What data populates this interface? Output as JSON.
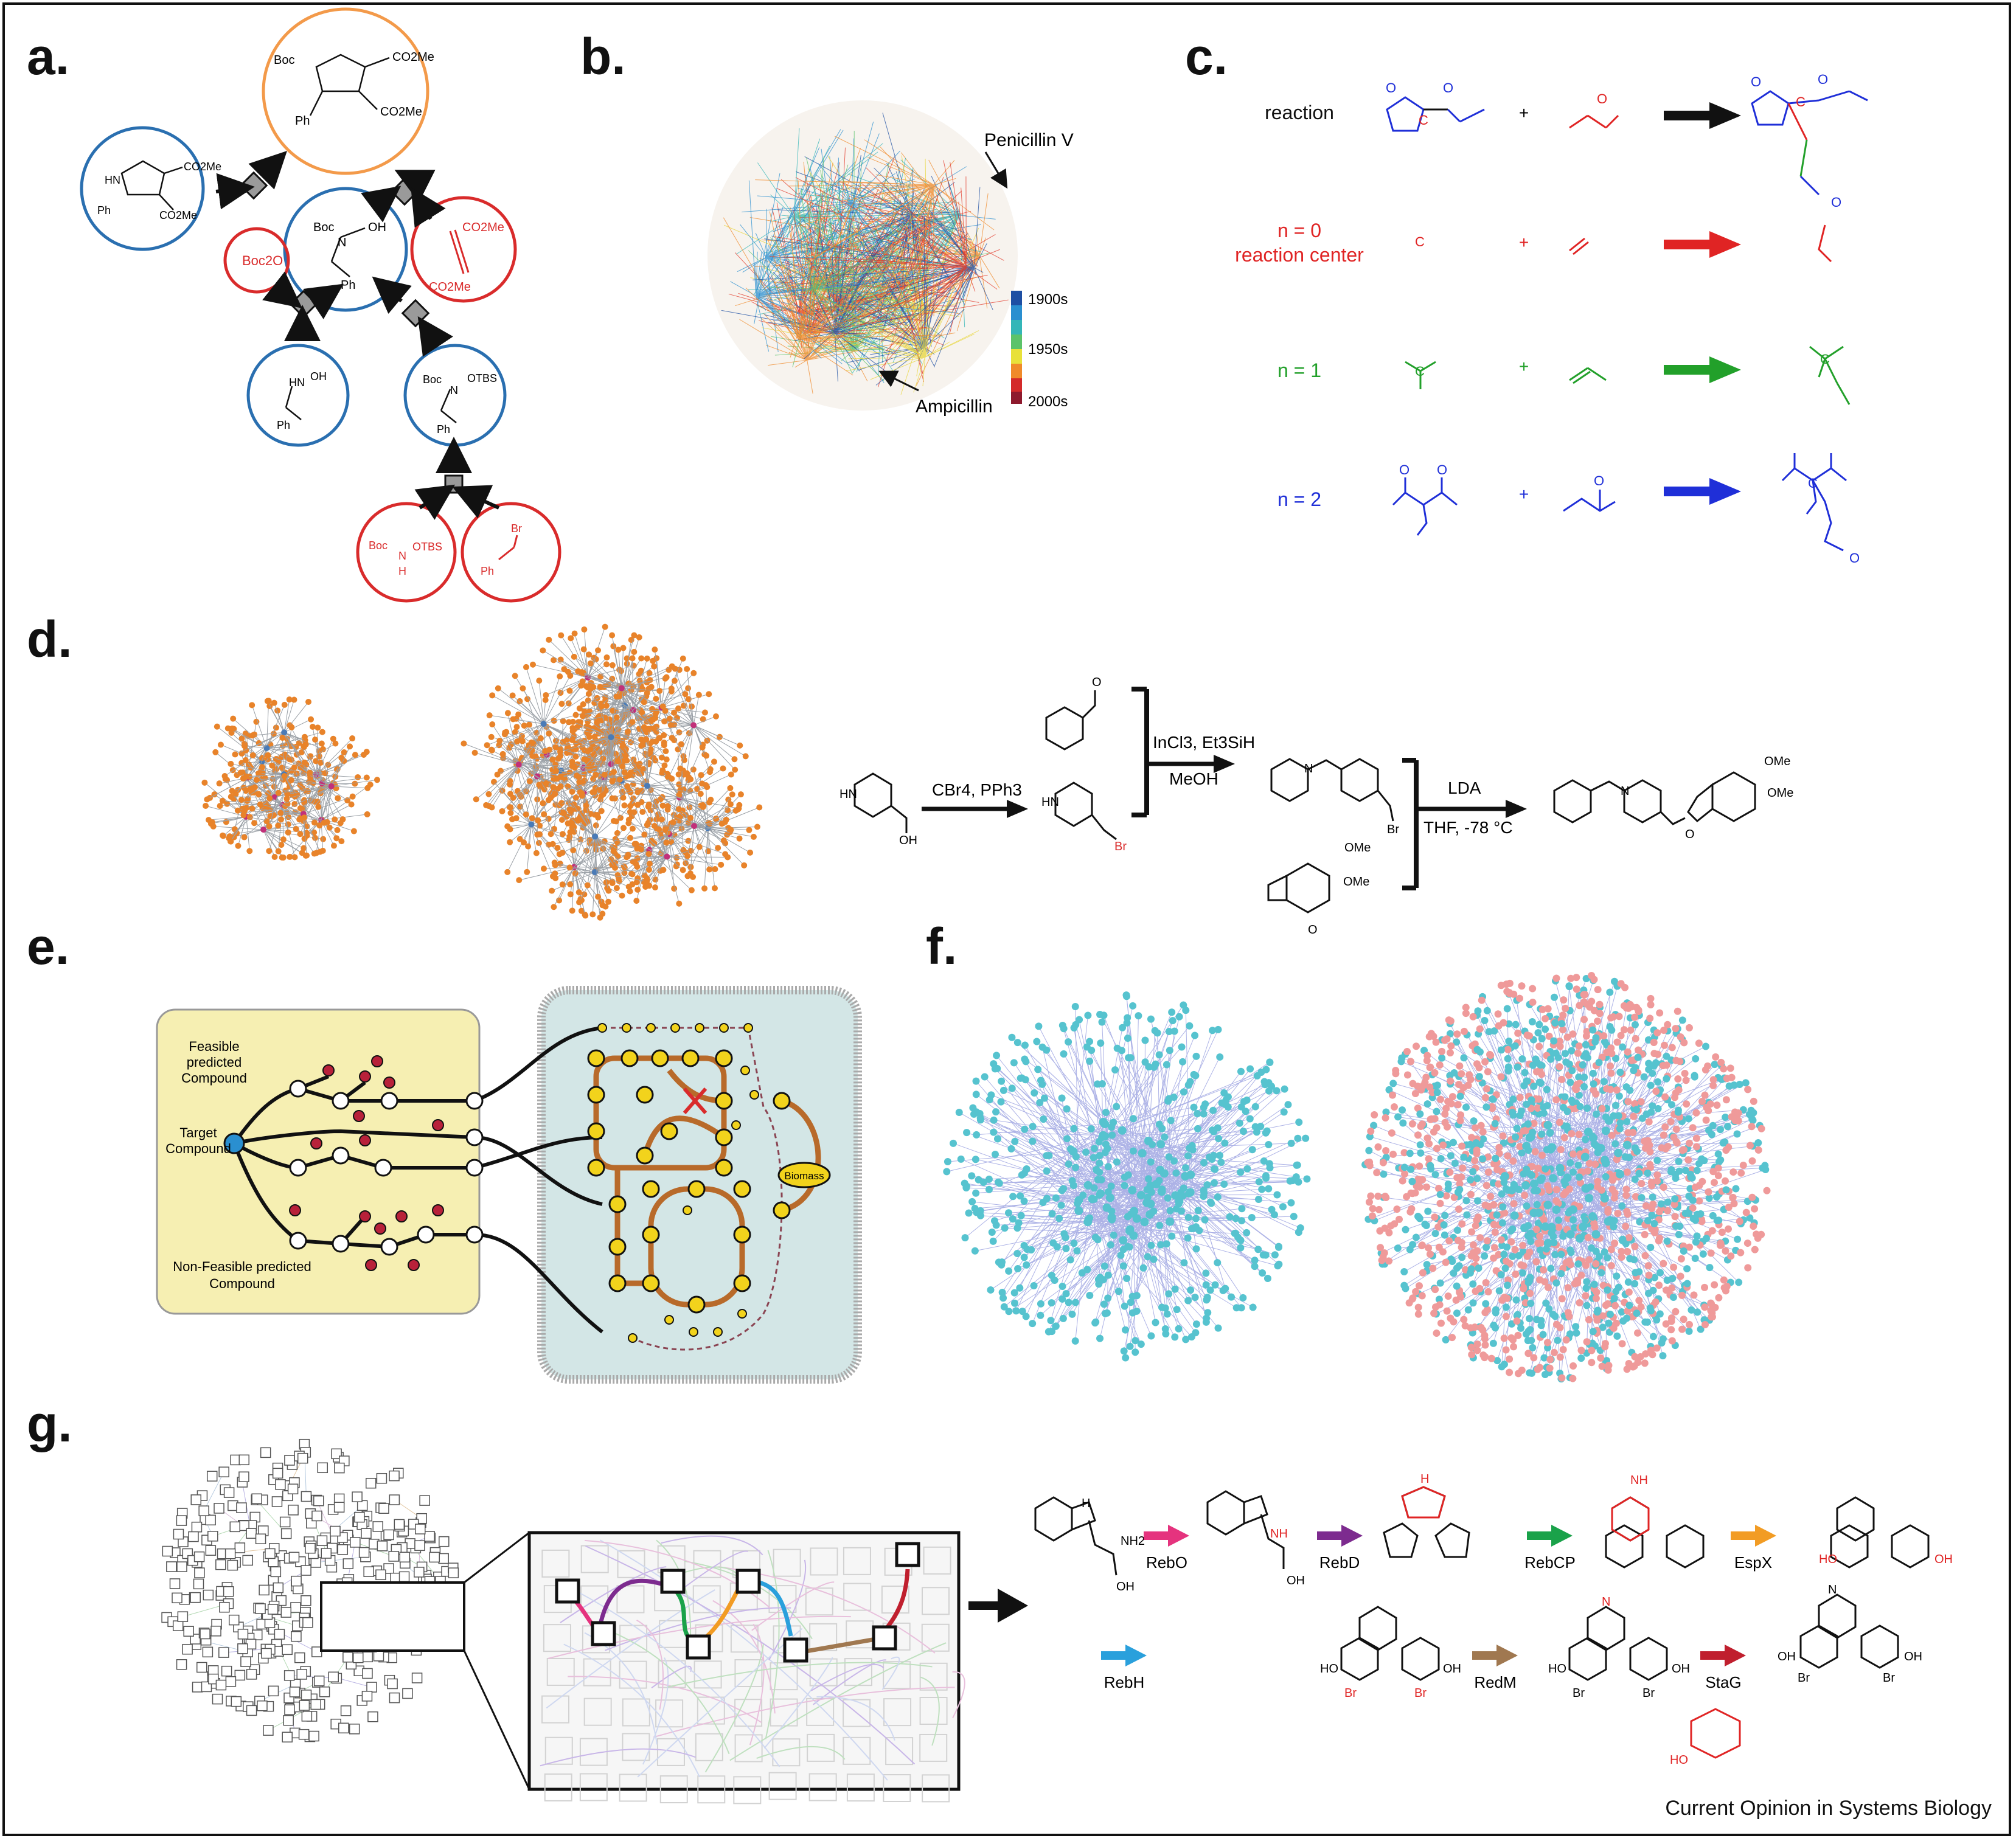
{
  "panels": {
    "a": {
      "label": "a.",
      "molecules": [
        "Boc",
        "CO2Me",
        "Ph",
        "HN",
        "N",
        "OH",
        "OTBS",
        "Boc2O",
        "Br",
        "H"
      ],
      "colors": {
        "target": "#f39a4a",
        "intermediate": "#2a6fb0",
        "starting": "#d92b2b"
      }
    },
    "b": {
      "label": "b.",
      "annotations": [
        "Penicillin V",
        "Ampicillin"
      ],
      "colorbar_ticks": [
        "1900s",
        "1950s",
        "2000s"
      ]
    },
    "c": {
      "label": "c.",
      "rows": [
        {
          "label": "reaction",
          "sub": "",
          "color": "#111111"
        },
        {
          "label": "n = 0",
          "sub": "reaction center",
          "color": "#e02424"
        },
        {
          "label": "n = 1",
          "sub": "",
          "color": "#22a02a"
        },
        {
          "label": "n = 2",
          "sub": "",
          "color": "#1f2fd8"
        }
      ],
      "plus": "+",
      "atom_c": "C",
      "atom_o": "O"
    },
    "d": {
      "label": "d.",
      "reagents": [
        "CBr4, PPh3",
        "InCl3, Et3SiH",
        "MeOH",
        "LDA",
        "THF, -78 °C"
      ],
      "atoms": [
        "HN",
        "OH",
        "Br",
        "N",
        "O",
        "OMe"
      ]
    },
    "e": {
      "label": "e.",
      "annotations": [
        "Feasible",
        "predicted",
        "Compound",
        "Target",
        "Compound",
        "Non-Feasible predicted",
        "Compound"
      ],
      "biomass": "Biomass"
    },
    "f": {
      "label": "f."
    },
    "g": {
      "label": "g.",
      "enzymes": [
        {
          "name": "RebO",
          "color": "#e5337e"
        },
        {
          "name": "RebD",
          "color": "#7d2b8f"
        },
        {
          "name": "RebCP",
          "color": "#1aa24a"
        },
        {
          "name": "EspX",
          "color": "#f29c24"
        },
        {
          "name": "RebH",
          "color": "#2aa0dc"
        },
        {
          "name": "RedM",
          "color": "#a07850"
        },
        {
          "name": "StaG",
          "color": "#c01f2e"
        }
      ],
      "atoms": [
        "NH2",
        "OH",
        "NH",
        "N",
        "O",
        "HO",
        "Br",
        "H"
      ]
    }
  },
  "footer": "Current Opinion in Systems Biology"
}
